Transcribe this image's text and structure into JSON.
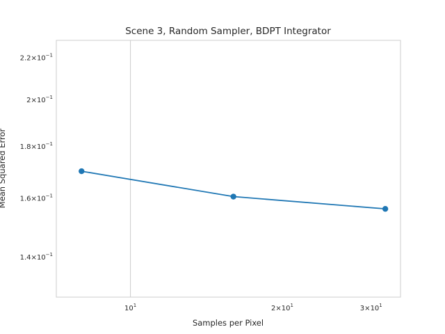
{
  "chart_data": {
    "type": "line",
    "title": "Scene 3, Random Sampler, BDPT Integrator",
    "xlabel": "Samples per Pixel",
    "ylabel": "Mean Squared Error",
    "xscale": "log",
    "yscale": "log",
    "xlim": [
      7.13,
      34.3
    ],
    "ylim": [
      0.1278,
      0.2287
    ],
    "grid": "vertical major only",
    "x_ticks": [
      {
        "value": 10,
        "mantissa": "",
        "base": "10",
        "exp": "1"
      },
      {
        "value": 20,
        "mantissa": "2",
        "base": "10",
        "exp": "1"
      },
      {
        "value": 30,
        "mantissa": "3",
        "base": "10",
        "exp": "1"
      }
    ],
    "y_ticks": [
      {
        "value": 0.14,
        "mantissa": "1.4",
        "base": "10",
        "exp": "−1"
      },
      {
        "value": 0.16,
        "mantissa": "1.6",
        "base": "10",
        "exp": "−1"
      },
      {
        "value": 0.18,
        "mantissa": "1.8",
        "base": "10",
        "exp": "−1"
      },
      {
        "value": 0.2,
        "mantissa": "2",
        "base": "10",
        "exp": "−1"
      },
      {
        "value": 0.22,
        "mantissa": "2.2",
        "base": "10",
        "exp": "−1"
      }
    ],
    "series": [
      {
        "color": "#1f77b4",
        "marker": "circle",
        "x": [
          8,
          16,
          32
        ],
        "y": [
          0.17,
          0.1605,
          0.1561
        ]
      }
    ]
  }
}
